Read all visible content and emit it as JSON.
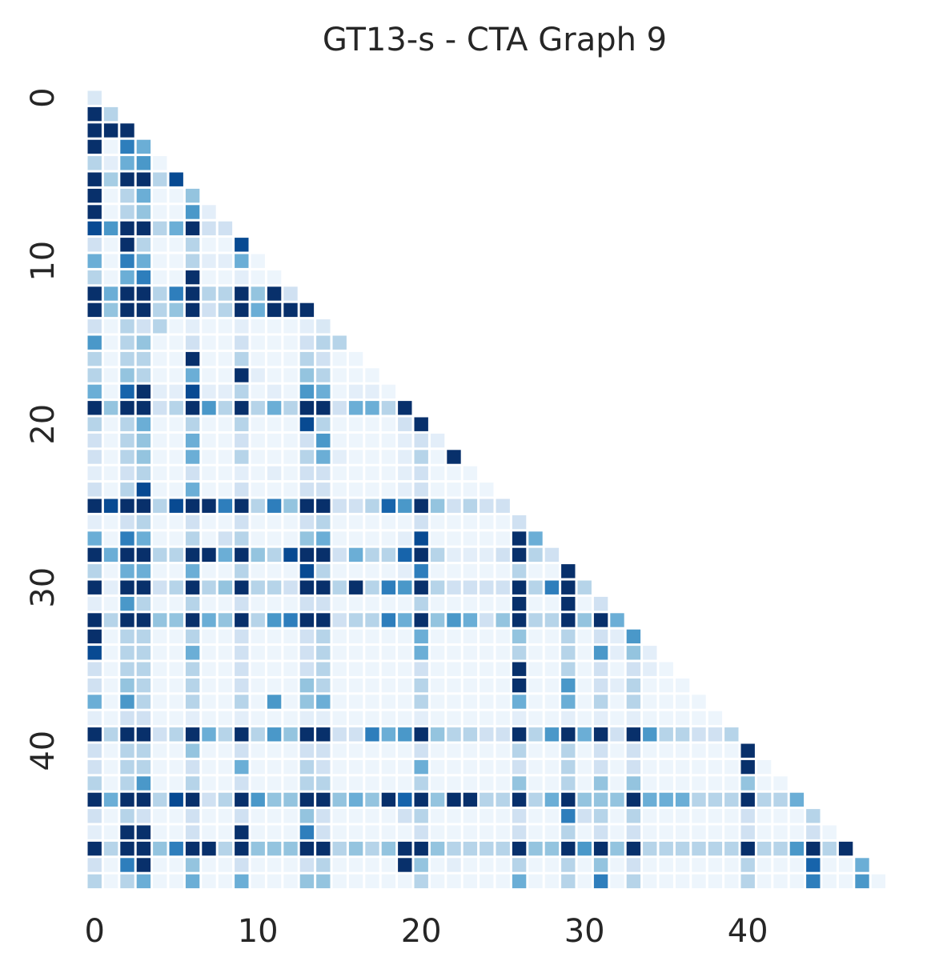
{
  "chart_data": {
    "type": "heatmap",
    "title": "GT13-s - CTA Graph 9",
    "xticks": [
      0,
      10,
      20,
      30,
      40
    ],
    "yticks": [
      0,
      10,
      20,
      30,
      40
    ],
    "vlim": [
      0,
      1
    ],
    "colormap": [
      "#f7fbff",
      "#deebf7",
      "#c6dbef",
      "#9ecae1",
      "#6baed6",
      "#4292c6",
      "#2171b5",
      "#08519c",
      "#08306b"
    ],
    "values": [
      [
        0.15
      ],
      [
        1,
        0.3
      ],
      [
        1,
        1,
        1
      ],
      [
        1,
        0.05,
        0.7,
        0.5
      ],
      [
        0.3,
        0.1,
        0.5,
        0.6,
        0.05
      ],
      [
        1,
        0.35,
        1,
        1,
        0.3,
        0.9
      ],
      [
        1,
        0.05,
        0.3,
        0.5,
        0.05,
        0.05,
        0.4
      ],
      [
        1,
        0.05,
        0.3,
        0.4,
        0.05,
        0.05,
        0.6,
        0.1
      ],
      [
        0.9,
        0.6,
        1,
        1,
        0.3,
        0.5,
        1,
        0.2,
        0.2
      ],
      [
        0.2,
        0.05,
        1,
        0.3,
        0.05,
        0.05,
        0.3,
        0.05,
        0.05,
        0.9
      ],
      [
        0.5,
        0.05,
        0.7,
        0.5,
        0.05,
        0.05,
        0.3,
        0.1,
        0.1,
        0.5,
        0.05
      ],
      [
        0.3,
        0.05,
        0.5,
        0.7,
        0.05,
        0.05,
        1,
        0.05,
        0.05,
        0.1,
        0.05,
        0.05
      ],
      [
        1,
        0.5,
        1,
        1,
        0.3,
        0.7,
        1,
        0.3,
        0.3,
        1,
        0.4,
        1,
        0.2
      ],
      [
        1,
        0.4,
        1,
        1,
        0.3,
        0.4,
        1,
        0.2,
        0.3,
        1,
        0.5,
        1,
        1,
        1
      ],
      [
        0.2,
        0.05,
        0.3,
        0.2,
        0.3,
        0.05,
        0.1,
        0.05,
        0.05,
        0.1,
        0.05,
        0.05,
        0.05,
        0.1,
        0.15
      ],
      [
        0.6,
        0.05,
        0.3,
        0.4,
        0.05,
        0.05,
        0.2,
        0.05,
        0.05,
        0.2,
        0.05,
        0.05,
        0.05,
        0.2,
        0.3,
        0.3
      ],
      [
        0.3,
        0.05,
        0.3,
        0.3,
        0.05,
        0.05,
        1,
        0.05,
        0.05,
        0.3,
        0.05,
        0.05,
        0.05,
        0.3,
        0.2,
        0.05,
        0.05
      ],
      [
        0.3,
        0.05,
        0.4,
        0.3,
        0.05,
        0.05,
        0.5,
        0.05,
        0.05,
        1,
        0.1,
        0.05,
        0.05,
        0.4,
        0.3,
        0.05,
        0.05,
        0.05
      ],
      [
        0.5,
        0.05,
        0.8,
        1,
        0.1,
        0.1,
        0.9,
        0.1,
        0.1,
        0.3,
        0.05,
        0.1,
        0.05,
        0.6,
        0.5,
        0.05,
        0.1,
        0.1,
        0.05
      ],
      [
        1,
        0.4,
        1,
        1,
        0.2,
        0.3,
        1,
        0.6,
        0.3,
        1,
        0.3,
        0.5,
        0.3,
        1,
        1,
        0.2,
        0.5,
        0.5,
        0.3,
        1
      ],
      [
        0.3,
        0.05,
        0.3,
        0.5,
        0.05,
        0.05,
        0.3,
        0.05,
        0.05,
        0.3,
        0.05,
        0.05,
        0.05,
        0.9,
        0.3,
        0.05,
        0.05,
        0.05,
        0.05,
        0.2,
        1
      ],
      [
        0.2,
        0.05,
        0.3,
        0.4,
        0.05,
        0.05,
        0.5,
        0.05,
        0.05,
        0.2,
        0.05,
        0.05,
        0.05,
        0.2,
        0.6,
        0.05,
        0.05,
        0.05,
        0.05,
        0.1,
        0.2,
        0.1
      ],
      [
        0.2,
        0.05,
        0.3,
        0.4,
        0.05,
        0.05,
        0.5,
        0.05,
        0.05,
        0.3,
        0.05,
        0.05,
        0.05,
        0.3,
        0.5,
        0.1,
        0.05,
        0.05,
        0.05,
        0.1,
        0.3,
        0.05,
        1
      ],
      [
        0.1,
        0.05,
        0.2,
        0.3,
        0.05,
        0.05,
        0.2,
        0.05,
        0.05,
        0.1,
        0.05,
        0.1,
        0.05,
        0.2,
        0.2,
        0.05,
        0.05,
        0.05,
        0.05,
        0.1,
        0.2,
        0.05,
        0.05,
        0.05
      ],
      [
        0.2,
        0.05,
        0.3,
        0.9,
        0.05,
        0.05,
        0.5,
        0.05,
        0.05,
        0.2,
        0.05,
        0.05,
        0.05,
        0.2,
        0.2,
        0.05,
        0.05,
        0.05,
        0.05,
        0.1,
        0.2,
        0.05,
        0.05,
        0.05,
        0.05
      ],
      [
        1,
        0.9,
        1,
        1,
        0.3,
        0.9,
        1,
        1,
        0.7,
        1,
        0.3,
        0.7,
        0.4,
        1,
        1,
        0.2,
        0.2,
        0.3,
        0.8,
        0.6,
        1,
        0.4,
        0.2,
        0.3,
        0.2,
        0.2
      ],
      [
        0.1,
        0.05,
        0.2,
        0.3,
        0.05,
        0.05,
        0.2,
        0.05,
        0.05,
        0.2,
        0.05,
        0.05,
        0.05,
        0.2,
        0.3,
        0.05,
        0.05,
        0.05,
        0.05,
        0.05,
        0.2,
        0.05,
        0.05,
        0.05,
        0.05,
        0.05,
        0.2
      ],
      [
        0.5,
        0.05,
        0.7,
        0.5,
        0.05,
        0.05,
        0.3,
        0.05,
        0.2,
        0.3,
        0.05,
        0.05,
        0.05,
        0.4,
        0.5,
        0.05,
        0.05,
        0.05,
        0.05,
        0.1,
        0.9,
        0.05,
        0.05,
        0.05,
        0.05,
        0.05,
        1,
        0.5
      ],
      [
        1,
        0.5,
        1,
        1,
        0.3,
        0.3,
        1,
        1,
        0.5,
        1,
        0.4,
        0.3,
        0.9,
        1,
        1,
        0.2,
        0.5,
        0.3,
        0.3,
        0.8,
        1,
        0.3,
        0.1,
        0.1,
        0.1,
        0.2,
        1,
        0.3,
        0.2
      ],
      [
        0.3,
        0.05,
        0.5,
        0.5,
        0.05,
        0.05,
        0.5,
        0.05,
        0.05,
        0.3,
        0.05,
        0.05,
        0.05,
        0.9,
        0.3,
        0.05,
        0.05,
        0.05,
        0.05,
        0.1,
        0.7,
        0.05,
        0.05,
        0.05,
        0.05,
        0.05,
        0.3,
        0.05,
        0.05,
        1
      ],
      [
        1,
        0.1,
        1,
        1,
        0.2,
        0.3,
        1,
        0.3,
        0.4,
        1,
        0.3,
        0.3,
        0.2,
        1,
        1,
        0.3,
        1,
        0.3,
        0.7,
        0.6,
        1,
        0.3,
        0.2,
        0.2,
        0.2,
        0.2,
        1,
        0.3,
        0.7,
        1,
        0.3
      ],
      [
        0.1,
        0.05,
        0.6,
        0.3,
        0.05,
        0.05,
        0.3,
        0.05,
        0.05,
        0.2,
        0.05,
        0.05,
        0.05,
        0.2,
        0.2,
        0.05,
        0.05,
        0.05,
        0.05,
        0.05,
        0.3,
        0.05,
        0.05,
        0.05,
        0.05,
        0.05,
        1,
        0.05,
        0.05,
        1,
        0.05,
        0.2
      ],
      [
        1,
        0.3,
        1,
        1,
        0.4,
        0.4,
        1,
        0.5,
        0.4,
        1,
        0.3,
        0.6,
        0.7,
        1,
        1,
        0.2,
        0.3,
        0.3,
        0.7,
        0.5,
        1,
        0.4,
        0.6,
        0.5,
        0.2,
        0.4,
        1,
        0.3,
        0.3,
        1,
        0.4,
        1,
        0.5
      ],
      [
        1,
        0.05,
        0.3,
        0.3,
        0.05,
        0.05,
        0.3,
        0.05,
        0.05,
        0.2,
        0.05,
        0.05,
        0.05,
        0.2,
        0.3,
        0.05,
        0.05,
        0.05,
        0.05,
        0.05,
        0.5,
        0.05,
        0.05,
        0.05,
        0.05,
        0.05,
        0.4,
        0.05,
        0.05,
        0.3,
        0.05,
        0.2,
        0.1,
        0.6
      ],
      [
        0.9,
        0.05,
        0.3,
        0.3,
        0.05,
        0.05,
        0.5,
        0.05,
        0.05,
        0.2,
        0.05,
        0.05,
        0.05,
        0.2,
        0.3,
        0.05,
        0.05,
        0.05,
        0.05,
        0.05,
        0.5,
        0.05,
        0.05,
        0.05,
        0.05,
        0.05,
        0.3,
        0.05,
        0.05,
        0.3,
        0.05,
        0.6,
        0.1,
        0.4,
        0.1
      ],
      [
        0.2,
        0.05,
        0.3,
        0.3,
        0.05,
        0.05,
        0.3,
        0.05,
        0.05,
        0.2,
        0.05,
        0.05,
        0.05,
        0.2,
        0.3,
        0.05,
        0.05,
        0.05,
        0.05,
        0.05,
        0.2,
        0.05,
        0.05,
        0.05,
        0.05,
        0.05,
        1,
        0.05,
        0.05,
        0.3,
        0.05,
        0.2,
        0.05,
        0.2,
        0.1,
        0.05
      ],
      [
        0.2,
        0.05,
        0.4,
        0.3,
        0.05,
        0.05,
        0.3,
        0.05,
        0.05,
        0.2,
        0.05,
        0.05,
        0.05,
        0.4,
        0.3,
        0.05,
        0.05,
        0.05,
        0.05,
        0.05,
        0.3,
        0.05,
        0.05,
        0.05,
        0.05,
        0.05,
        1,
        0.05,
        0.05,
        0.6,
        0.05,
        0.2,
        0.1,
        0.3,
        0.05,
        0.05,
        0.05
      ],
      [
        0.5,
        0.05,
        0.6,
        0.3,
        0.05,
        0.05,
        0.3,
        0.05,
        0.05,
        0.3,
        0.05,
        0.6,
        0.05,
        0.4,
        0.5,
        0.05,
        0.05,
        0.05,
        0.05,
        0.05,
        0.3,
        0.05,
        0.05,
        0.05,
        0.05,
        0.05,
        0.5,
        0.05,
        0.05,
        0.5,
        0.05,
        0.3,
        0.05,
        0.3,
        0.05,
        0.05,
        0.05,
        0.05
      ],
      [
        0.1,
        0.05,
        0.2,
        0.2,
        0.05,
        0.05,
        0.1,
        0.05,
        0.05,
        0.1,
        0.05,
        0.05,
        0.05,
        0.1,
        0.1,
        0.05,
        0.05,
        0.05,
        0.05,
        0.05,
        0.1,
        0.05,
        0.05,
        0.05,
        0.05,
        0.05,
        0.1,
        0.05,
        0.05,
        0.1,
        0.05,
        0.1,
        0.05,
        0.1,
        0.05,
        0.05,
        0.05,
        0.05,
        0.05
      ],
      [
        1,
        0.3,
        1,
        1,
        0.2,
        0.3,
        1,
        0.5,
        0.3,
        1,
        0.3,
        0.6,
        0.4,
        1,
        1,
        0.2,
        0.2,
        0.7,
        0.5,
        0.6,
        1,
        0.4,
        0.3,
        0.3,
        0.2,
        0.2,
        1,
        0.3,
        0.6,
        1,
        0.5,
        1,
        0.2,
        1,
        0.6,
        0.3,
        0.3,
        0.2,
        0.2,
        0.3
      ],
      [
        0.2,
        0.05,
        0.3,
        0.3,
        0.05,
        0.05,
        0.4,
        0.05,
        0.05,
        0.2,
        0.05,
        0.05,
        0.05,
        0.2,
        0.2,
        0.05,
        0.05,
        0.05,
        0.05,
        0.05,
        0.2,
        0.05,
        0.05,
        0.05,
        0.05,
        0.05,
        0.3,
        0.05,
        0.05,
        0.3,
        0.05,
        0.2,
        0.05,
        0.2,
        0.05,
        0.05,
        0.05,
        0.05,
        0.05,
        0.05,
        1
      ],
      [
        0.2,
        0.05,
        0.3,
        0.3,
        0.05,
        0.05,
        0.2,
        0.05,
        0.05,
        0.5,
        0.05,
        0.05,
        0.05,
        0.3,
        0.2,
        0.05,
        0.05,
        0.05,
        0.05,
        0.05,
        0.5,
        0.05,
        0.05,
        0.05,
        0.05,
        0.05,
        0.2,
        0.05,
        0.05,
        0.3,
        0.05,
        0.2,
        0.05,
        0.2,
        0.05,
        0.05,
        0.05,
        0.05,
        0.05,
        0.05,
        1,
        0.05
      ],
      [
        0.3,
        0.05,
        0.3,
        0.6,
        0.05,
        0.05,
        0.3,
        0.05,
        0.05,
        0.2,
        0.05,
        0.05,
        0.05,
        0.3,
        0.3,
        0.05,
        0.05,
        0.05,
        0.05,
        0.05,
        0.3,
        0.05,
        0.05,
        0.05,
        0.05,
        0.05,
        0.4,
        0.05,
        0.05,
        0.3,
        0.05,
        0.4,
        0.05,
        0.4,
        0.05,
        0.05,
        0.05,
        0.05,
        0.05,
        0.05,
        0.4,
        0.05,
        0.05
      ],
      [
        1,
        0.5,
        1,
        1,
        0.3,
        0.9,
        1,
        0.2,
        0.3,
        1,
        0.6,
        0.4,
        0.4,
        1,
        1,
        0.4,
        0.5,
        0.4,
        1,
        0.8,
        1,
        0.4,
        1,
        1,
        0.3,
        0.3,
        1,
        0.3,
        0.5,
        1,
        0.4,
        0.4,
        0.4,
        1,
        0.5,
        0.5,
        0.5,
        0.3,
        0.3,
        0.3,
        1,
        0.3,
        0.3,
        0.5
      ],
      [
        0.2,
        0.05,
        0.3,
        0.2,
        0.05,
        0.05,
        0.2,
        0.05,
        0.05,
        0.2,
        0.05,
        0.05,
        0.05,
        0.4,
        0.2,
        0.05,
        0.05,
        0.05,
        0.05,
        0.2,
        0.3,
        0.05,
        0.05,
        0.05,
        0.05,
        0.05,
        0.2,
        0.05,
        0.05,
        0.7,
        0.2,
        0.3,
        0.05,
        0.3,
        0.05,
        0.05,
        0.05,
        0.05,
        0.05,
        0.05,
        0.2,
        0.05,
        0.05,
        0.05,
        0.3
      ],
      [
        0.1,
        0.05,
        1,
        1,
        0.05,
        0.05,
        0.2,
        0.05,
        0.05,
        1,
        0.05,
        0.05,
        0.05,
        0.7,
        0.2,
        0.05,
        0.05,
        0.05,
        0.05,
        0.05,
        0.2,
        0.05,
        0.05,
        0.05,
        0.05,
        0.05,
        0.2,
        0.05,
        0.05,
        0.3,
        0.05,
        0.2,
        0.05,
        0.2,
        0.05,
        0.05,
        0.05,
        0.05,
        0.05,
        0.05,
        0.2,
        0.05,
        0.05,
        0.05,
        0.2,
        0.05
      ],
      [
        1,
        0.3,
        1,
        1,
        0.4,
        0.7,
        1,
        1,
        0.3,
        1,
        0.4,
        0.4,
        0.4,
        1,
        1,
        0.3,
        0.4,
        0.3,
        0.4,
        1,
        1,
        0.4,
        0.3,
        0.3,
        0.3,
        0.3,
        1,
        0.4,
        0.4,
        1,
        0.6,
        1,
        0.4,
        1,
        0.3,
        0.3,
        0.3,
        0.3,
        0.3,
        0.3,
        1,
        0.3,
        0.3,
        0.6,
        1,
        0.3,
        1
      ],
      [
        0.2,
        0.05,
        0.7,
        1,
        0.05,
        0.05,
        0.4,
        0.05,
        0.05,
        0.2,
        0.05,
        0.05,
        0.05,
        0.2,
        0.3,
        0.05,
        0.05,
        0.05,
        0.05,
        1,
        0.4,
        0.05,
        0.1,
        0.05,
        0.05,
        0.05,
        0.3,
        0.05,
        0.05,
        0.3,
        0.05,
        0.4,
        0.05,
        0.2,
        0.05,
        0.05,
        0.05,
        0.05,
        0.05,
        0.05,
        0.3,
        0.05,
        0.05,
        0.05,
        0.8,
        0.05,
        0.05,
        0.5
      ],
      [
        0.3,
        0.05,
        0.3,
        0.5,
        0.05,
        0.05,
        0.5,
        0.05,
        0.05,
        0.5,
        0.05,
        0.05,
        0.05,
        0.4,
        0.4,
        0.05,
        0.05,
        0.05,
        0.05,
        0.05,
        0.3,
        0.05,
        0.05,
        0.05,
        0.05,
        0.05,
        0.5,
        0.05,
        0.05,
        0.3,
        0.05,
        0.7,
        0.05,
        0.3,
        0.05,
        0.05,
        0.05,
        0.05,
        0.05,
        0.05,
        0.3,
        0.05,
        0.05,
        0.05,
        0.7,
        0.05,
        0.05,
        0.6,
        0.05
      ]
    ]
  }
}
